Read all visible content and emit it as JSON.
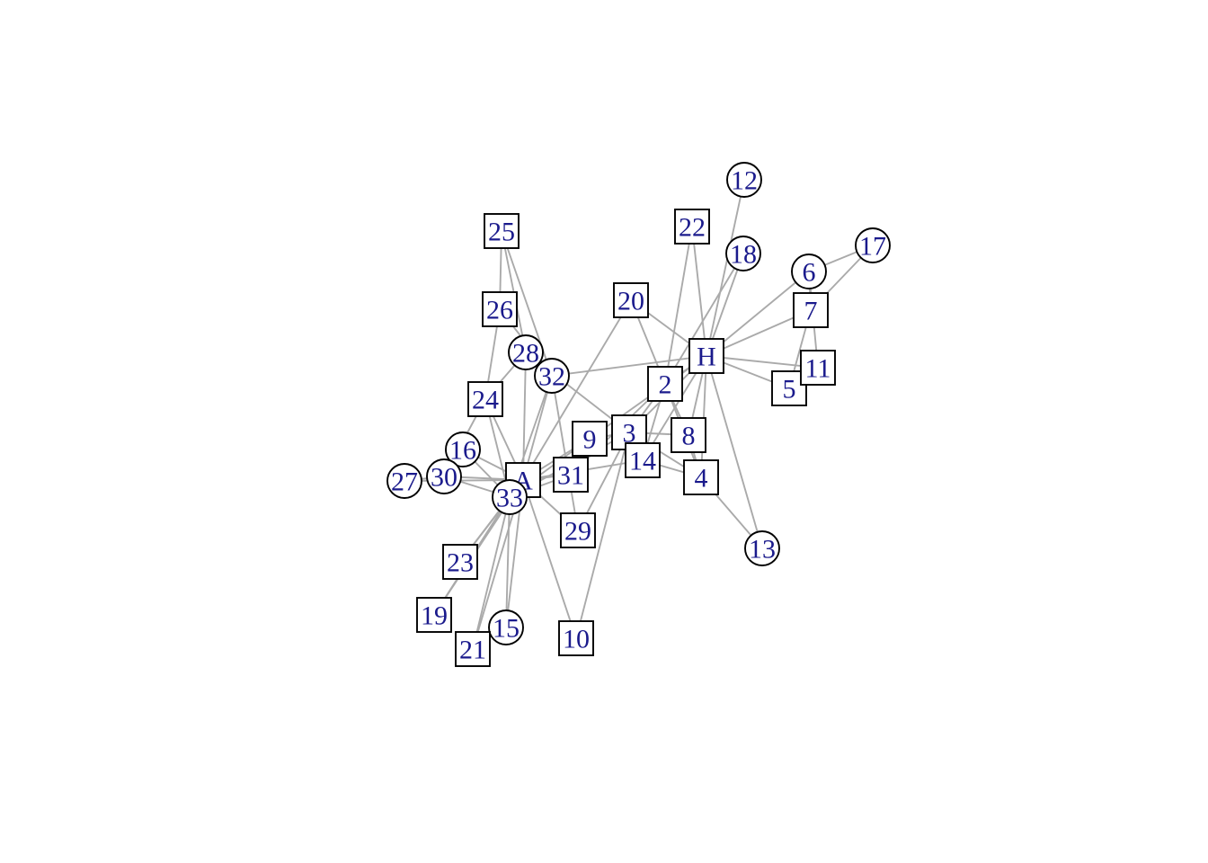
{
  "graph": {
    "colors": {
      "edge": "#aaaaaa",
      "node_border": "#000000",
      "node_fill": "#ffffff",
      "label": "#1a1a8c"
    },
    "nodes": [
      {
        "id": "A",
        "shape": "square"
      },
      {
        "id": "H",
        "shape": "square"
      },
      {
        "id": "2",
        "shape": "square"
      },
      {
        "id": "3",
        "shape": "square"
      },
      {
        "id": "4",
        "shape": "square"
      },
      {
        "id": "5",
        "shape": "square"
      },
      {
        "id": "6",
        "shape": "circle"
      },
      {
        "id": "7",
        "shape": "square"
      },
      {
        "id": "8",
        "shape": "square"
      },
      {
        "id": "9",
        "shape": "square"
      },
      {
        "id": "10",
        "shape": "square"
      },
      {
        "id": "11",
        "shape": "square"
      },
      {
        "id": "12",
        "shape": "circle"
      },
      {
        "id": "13",
        "shape": "circle"
      },
      {
        "id": "14",
        "shape": "square"
      },
      {
        "id": "15",
        "shape": "circle"
      },
      {
        "id": "16",
        "shape": "circle"
      },
      {
        "id": "17",
        "shape": "circle"
      },
      {
        "id": "18",
        "shape": "circle"
      },
      {
        "id": "19",
        "shape": "square"
      },
      {
        "id": "20",
        "shape": "square"
      },
      {
        "id": "21",
        "shape": "square"
      },
      {
        "id": "22",
        "shape": "square"
      },
      {
        "id": "23",
        "shape": "square"
      },
      {
        "id": "24",
        "shape": "square"
      },
      {
        "id": "25",
        "shape": "square"
      },
      {
        "id": "26",
        "shape": "square"
      },
      {
        "id": "27",
        "shape": "circle"
      },
      {
        "id": "28",
        "shape": "circle"
      },
      {
        "id": "29",
        "shape": "square"
      },
      {
        "id": "30",
        "shape": "circle"
      },
      {
        "id": "31",
        "shape": "square"
      },
      {
        "id": "32",
        "shape": "circle"
      },
      {
        "id": "33",
        "shape": "circle"
      }
    ],
    "edges": [
      [
        "H",
        "2"
      ],
      [
        "H",
        "3"
      ],
      [
        "H",
        "4"
      ],
      [
        "H",
        "5"
      ],
      [
        "H",
        "6"
      ],
      [
        "H",
        "7"
      ],
      [
        "H",
        "8"
      ],
      [
        "H",
        "9"
      ],
      [
        "H",
        "11"
      ],
      [
        "H",
        "12"
      ],
      [
        "H",
        "13"
      ],
      [
        "H",
        "14"
      ],
      [
        "H",
        "18"
      ],
      [
        "H",
        "20"
      ],
      [
        "H",
        "22"
      ],
      [
        "H",
        "32"
      ],
      [
        "2",
        "3"
      ],
      [
        "2",
        "4"
      ],
      [
        "2",
        "8"
      ],
      [
        "2",
        "14"
      ],
      [
        "2",
        "18"
      ],
      [
        "2",
        "20"
      ],
      [
        "2",
        "22"
      ],
      [
        "2",
        "31"
      ],
      [
        "3",
        "4"
      ],
      [
        "3",
        "8"
      ],
      [
        "3",
        "9"
      ],
      [
        "3",
        "10"
      ],
      [
        "3",
        "14"
      ],
      [
        "3",
        "28"
      ],
      [
        "3",
        "29"
      ],
      [
        "3",
        "33"
      ],
      [
        "4",
        "8"
      ],
      [
        "4",
        "13"
      ],
      [
        "4",
        "14"
      ],
      [
        "5",
        "7"
      ],
      [
        "5",
        "11"
      ],
      [
        "6",
        "7"
      ],
      [
        "6",
        "11"
      ],
      [
        "6",
        "17"
      ],
      [
        "7",
        "17"
      ],
      [
        "9",
        "31"
      ],
      [
        "9",
        "33"
      ],
      [
        "9",
        "A"
      ],
      [
        "10",
        "A"
      ],
      [
        "14",
        "A"
      ],
      [
        "15",
        "33"
      ],
      [
        "15",
        "A"
      ],
      [
        "16",
        "33"
      ],
      [
        "16",
        "A"
      ],
      [
        "19",
        "33"
      ],
      [
        "19",
        "A"
      ],
      [
        "20",
        "A"
      ],
      [
        "21",
        "33"
      ],
      [
        "21",
        "A"
      ],
      [
        "23",
        "33"
      ],
      [
        "23",
        "A"
      ],
      [
        "24",
        "26"
      ],
      [
        "24",
        "28"
      ],
      [
        "24",
        "30"
      ],
      [
        "24",
        "33"
      ],
      [
        "24",
        "A"
      ],
      [
        "25",
        "26"
      ],
      [
        "25",
        "28"
      ],
      [
        "25",
        "32"
      ],
      [
        "26",
        "32"
      ],
      [
        "27",
        "30"
      ],
      [
        "27",
        "A"
      ],
      [
        "28",
        "A"
      ],
      [
        "29",
        "32"
      ],
      [
        "29",
        "A"
      ],
      [
        "30",
        "33"
      ],
      [
        "30",
        "A"
      ],
      [
        "31",
        "33"
      ],
      [
        "31",
        "A"
      ],
      [
        "32",
        "33"
      ],
      [
        "32",
        "A"
      ],
      [
        "33",
        "A"
      ]
    ]
  }
}
